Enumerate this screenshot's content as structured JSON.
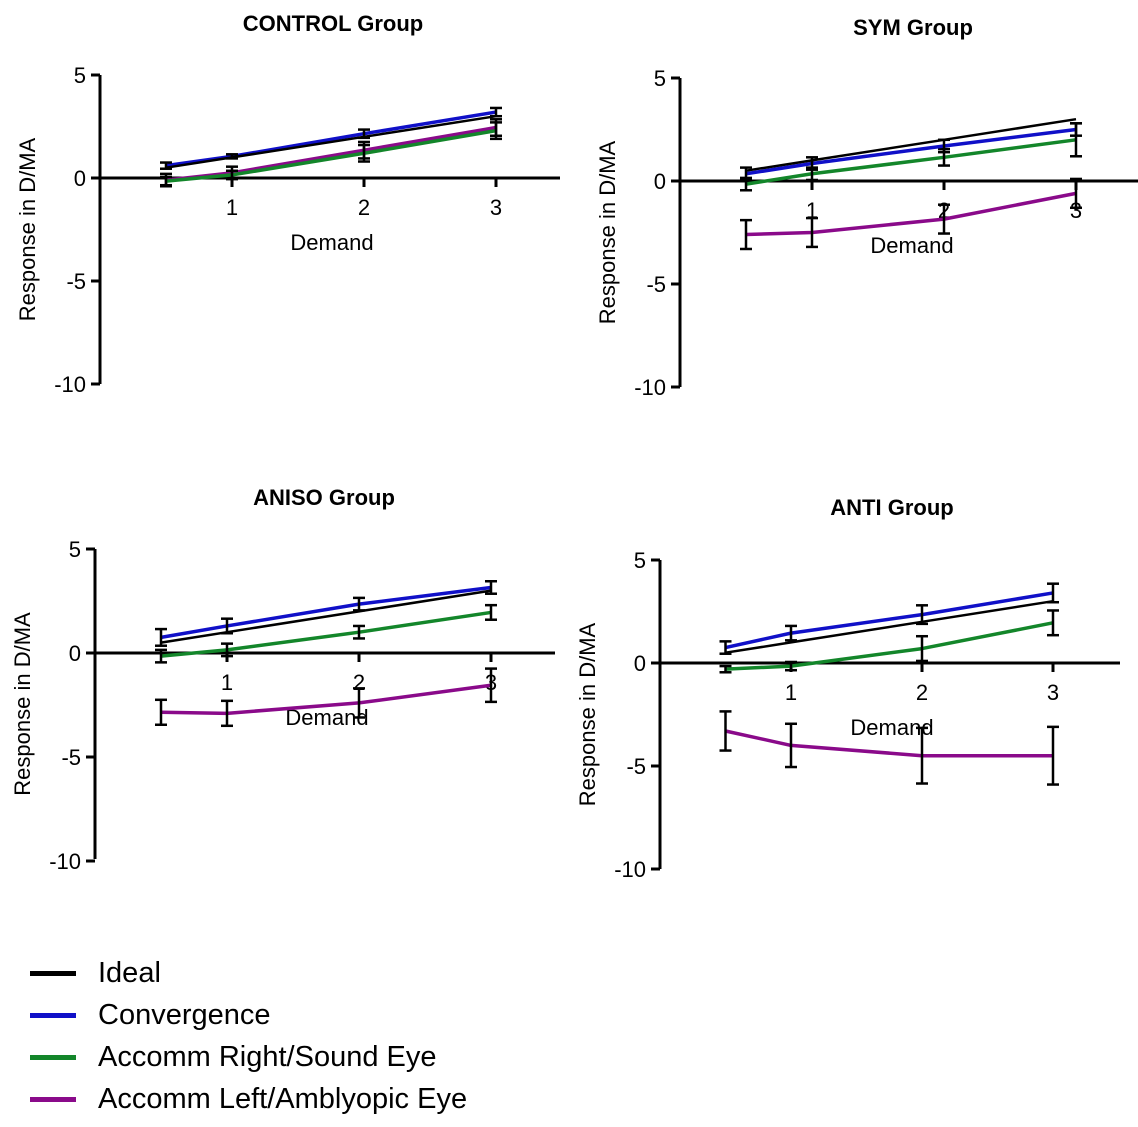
{
  "chart_data": [
    {
      "type": "line",
      "title": "CONTROL Group",
      "xlabel": "Demand",
      "ylabel": "Response in D/MA",
      "x": [
        0.5,
        1,
        2,
        3
      ],
      "xticks": [
        1,
        2,
        3
      ],
      "yticks": [
        5,
        0,
        -5,
        -10
      ],
      "ylim": [
        -10,
        5
      ],
      "series": [
        {
          "name": "Ideal",
          "color": "#000000",
          "values": [
            0.5,
            1,
            2,
            3
          ],
          "err": null
        },
        {
          "name": "Convergence",
          "color": "#1010c8",
          "values": [
            0.6,
            1.05,
            2.15,
            3.2
          ],
          "err": [
            0.15,
            0.1,
            0.2,
            0.2
          ]
        },
        {
          "name": "Accomm Right/Sound Eye",
          "color": "#13862a",
          "values": [
            -0.15,
            0.15,
            1.2,
            2.3
          ],
          "err": [
            0.2,
            0.2,
            0.4,
            0.4
          ]
        },
        {
          "name": "Accomm Left/Amblyopic Eye",
          "color": "#8a0a8a",
          "values": [
            -0.1,
            0.25,
            1.35,
            2.45
          ],
          "err": [
            0.3,
            0.3,
            0.4,
            0.4
          ]
        }
      ]
    },
    {
      "type": "line",
      "title": "SYM Group",
      "xlabel": "Demand",
      "ylabel": "Response in D/MA",
      "x": [
        0.5,
        1,
        2,
        3
      ],
      "xticks": [
        1,
        2,
        3
      ],
      "yticks": [
        5,
        0,
        -5,
        -10
      ],
      "ylim": [
        -10,
        5
      ],
      "series": [
        {
          "name": "Ideal",
          "color": "#000000",
          "values": [
            0.5,
            1,
            2,
            3
          ],
          "err": null
        },
        {
          "name": "Convergence",
          "color": "#1010c8",
          "values": [
            0.35,
            0.85,
            1.7,
            2.5
          ],
          "err": [
            0.3,
            0.3,
            0.3,
            0.3
          ]
        },
        {
          "name": "Accomm Right/Sound Eye",
          "color": "#13862a",
          "values": [
            -0.15,
            0.35,
            1.15,
            2.0
          ],
          "err": [
            0.3,
            0.3,
            0.4,
            0.8
          ]
        },
        {
          "name": "Accomm Left/Amblyopic Eye",
          "color": "#8a0a8a",
          "values": [
            -2.6,
            -2.5,
            -1.85,
            -0.6
          ],
          "err": [
            0.7,
            0.7,
            0.7,
            0.7
          ]
        }
      ]
    },
    {
      "type": "line",
      "title": "ANISO Group",
      "xlabel": "Demand",
      "ylabel": "Response in D/MA",
      "x": [
        0.5,
        1,
        2,
        3
      ],
      "xticks": [
        1,
        2,
        3
      ],
      "yticks": [
        5,
        0,
        -5,
        -10
      ],
      "ylim": [
        -10,
        5
      ],
      "series": [
        {
          "name": "Ideal",
          "color": "#000000",
          "values": [
            0.5,
            1,
            2,
            3
          ],
          "err": null
        },
        {
          "name": "Convergence",
          "color": "#1010c8",
          "values": [
            0.75,
            1.3,
            2.35,
            3.15
          ],
          "err": [
            0.4,
            0.35,
            0.3,
            0.3
          ]
        },
        {
          "name": "Accomm Right/Sound Eye",
          "color": "#13862a",
          "values": [
            -0.15,
            0.15,
            1.0,
            1.95
          ],
          "err": [
            0.3,
            0.3,
            0.3,
            0.35
          ]
        },
        {
          "name": "Accomm Left/Amblyopic Eye",
          "color": "#8a0a8a",
          "values": [
            -2.85,
            -2.9,
            -2.4,
            -1.55
          ],
          "err": [
            0.6,
            0.6,
            0.7,
            0.8
          ]
        }
      ]
    },
    {
      "type": "line",
      "title": "ANTI Group",
      "xlabel": "Demand",
      "ylabel": "Response in D/MA",
      "x": [
        0.5,
        1,
        2,
        3
      ],
      "xticks": [
        1,
        2,
        3
      ],
      "yticks": [
        5,
        0,
        -5,
        -10
      ],
      "ylim": [
        -10,
        5
      ],
      "series": [
        {
          "name": "Ideal",
          "color": "#000000",
          "values": [
            0.5,
            1,
            2,
            3
          ],
          "err": null
        },
        {
          "name": "Convergence",
          "color": "#1010c8",
          "values": [
            0.75,
            1.45,
            2.35,
            3.4
          ],
          "err": [
            0.3,
            0.35,
            0.45,
            0.45
          ]
        },
        {
          "name": "Accomm Right/Sound Eye",
          "color": "#13862a",
          "values": [
            -0.3,
            -0.15,
            0.7,
            1.95
          ],
          "err": [
            0.15,
            0.2,
            0.6,
            0.6
          ]
        },
        {
          "name": "Accomm Left/Amblyopic Eye",
          "color": "#8a0a8a",
          "values": [
            -3.3,
            -4.0,
            -4.5,
            -4.5
          ],
          "err": [
            0.95,
            1.05,
            1.35,
            1.4
          ]
        }
      ]
    }
  ],
  "legend": {
    "items": [
      {
        "label": "Ideal",
        "color": "#000000"
      },
      {
        "label": "Convergence",
        "color": "#1010c8"
      },
      {
        "label": "Accomm Right/Sound Eye",
        "color": "#13862a"
      },
      {
        "label": "Accomm Left/Amblyopic Eye",
        "color": "#8a0a8a"
      }
    ]
  }
}
